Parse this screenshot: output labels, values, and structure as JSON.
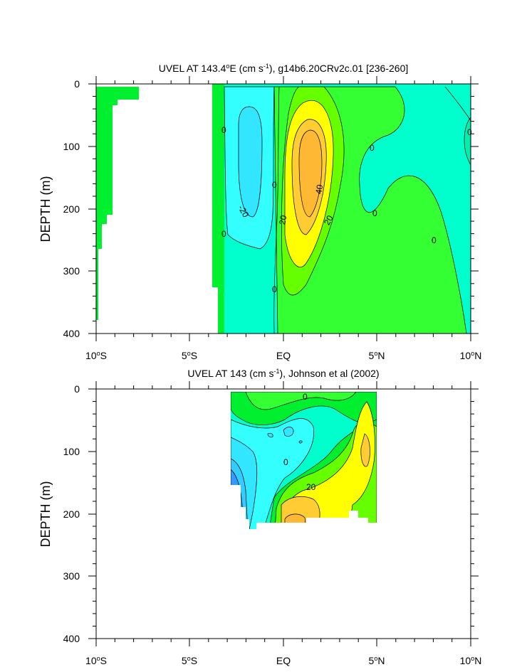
{
  "chart_data": [
    {
      "type": "contour",
      "title_main": "UVEL AT 143.4",
      "title_sup": "o",
      "title_rest": "E (cm s",
      "title_unit_sup": "-1",
      "title_tail": "), g14b6.20CRv2c.01 [236-260]",
      "ylabel": "DEPTH (m)",
      "xlim": [
        -10,
        10
      ],
      "ylim": [
        400,
        0
      ],
      "xticks": [
        {
          "main": "10",
          "sup": "o",
          "tail": "S"
        },
        {
          "main": "5",
          "sup": "o",
          "tail": "S"
        },
        {
          "main": "EQ",
          "sup": "",
          "tail": ""
        },
        {
          "main": "5",
          "sup": "o",
          "tail": "N"
        },
        {
          "main": "10",
          "sup": "o",
          "tail": "N"
        }
      ],
      "yticks": [
        "0",
        "100",
        "200",
        "300",
        "400"
      ],
      "contour_labels": [
        "0",
        "0",
        "-20",
        "0",
        "0",
        "20",
        "40",
        "20",
        "0",
        "0",
        "0",
        "0"
      ]
    },
    {
      "type": "contour",
      "title_main": "UVEL AT 143 (cm s",
      "title_unit_sup": "-1",
      "title_tail": "), Johnson et al (2002)",
      "ylabel": "DEPTH (m)",
      "xlim": [
        -10,
        10
      ],
      "ylim": [
        400,
        0
      ],
      "xticks": [
        {
          "main": "10",
          "sup": "o",
          "tail": "S"
        },
        {
          "main": "5",
          "sup": "o",
          "tail": "S"
        },
        {
          "main": "EQ",
          "sup": "",
          "tail": ""
        },
        {
          "main": "5",
          "sup": "o",
          "tail": "N"
        },
        {
          "main": "10",
          "sup": "o",
          "tail": "N"
        }
      ],
      "yticks": [
        "0",
        "100",
        "200",
        "300",
        "400"
      ],
      "contour_labels": [
        "0",
        "0",
        "20"
      ]
    }
  ],
  "colors": {
    "green": "#33ff33",
    "bright_green": "#00f030",
    "light_green": "#66ff00",
    "teal": "#00ffcc",
    "cyan": "#33ffff",
    "aqua": "#33e6ff",
    "sky": "#33ccff",
    "blue": "#3399ff",
    "yellow": "#ffff00",
    "gold": "#ffcc33",
    "orange": "#ffb833"
  }
}
